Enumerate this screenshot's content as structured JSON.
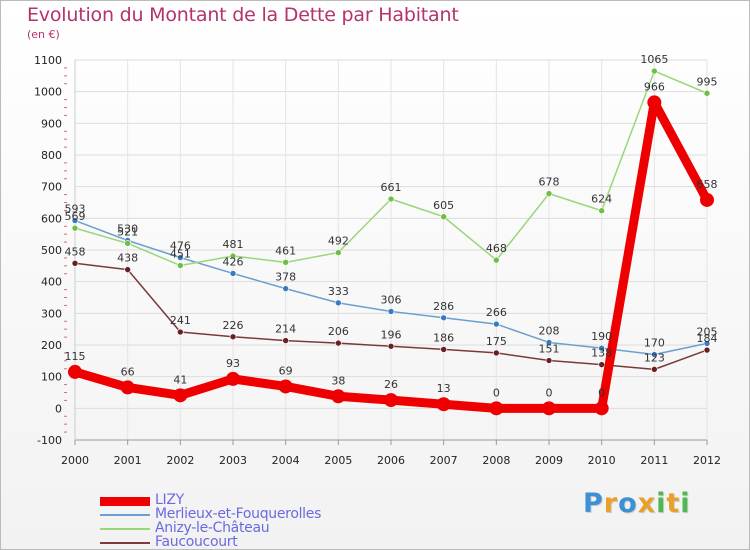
{
  "title": "Evolution du Montant de la Dette par Habitant",
  "subtitle": "(en €)",
  "brand": {
    "letters": [
      "P",
      "r",
      "o",
      "x",
      "i",
      "t",
      "i"
    ],
    "colors": [
      "#3d8fd6",
      "#e8a02a",
      "#3d8fd6",
      "#e8a02a",
      "#4fb84f",
      "#e8a02a",
      "#4fb84f"
    ]
  },
  "chart_data": {
    "type": "line",
    "title": "Evolution du Montant de la Dette par Habitant",
    "subtitle": "(en €)",
    "xlabel": "",
    "ylabel": "",
    "x": [
      "2000",
      "2001",
      "2002",
      "2003",
      "2004",
      "2005",
      "2006",
      "2007",
      "2008",
      "2009",
      "2010",
      "2011",
      "2012"
    ],
    "ylim": [
      -100,
      1100
    ],
    "yticks": [
      "-100",
      "0",
      "100",
      "200",
      "300",
      "400",
      "500",
      "600",
      "700",
      "800",
      "900",
      "1000",
      "1100"
    ],
    "grid": true,
    "legend_position": "bottom-left",
    "series": [
      {
        "name": "LIZY",
        "color": "#ee0000",
        "values": [
          115,
          66,
          41,
          93,
          69,
          38,
          26,
          13,
          0,
          0,
          0,
          966,
          658
        ],
        "labels": [
          "115",
          "66",
          "41",
          "93",
          "69",
          "38",
          "26",
          "13",
          "0",
          "0",
          "0",
          "966",
          "658"
        ]
      },
      {
        "name": "Merlieux-et-Fouquerolles",
        "color": "#6a9fd0",
        "marker": "#3a7bc0",
        "values": [
          593,
          530,
          476,
          426,
          378,
          333,
          306,
          286,
          266,
          208,
          190,
          170,
          205
        ],
        "labels": [
          "593",
          "530",
          "476",
          "426",
          "378",
          "333",
          "306",
          "286",
          "266",
          "208",
          "190",
          "170",
          "205"
        ]
      },
      {
        "name": "Anizy-le-Château",
        "color": "#9ad67a",
        "marker": "#6ac040",
        "values": [
          569,
          521,
          451,
          481,
          461,
          492,
          661,
          605,
          468,
          678,
          624,
          1065,
          995
        ],
        "labels": [
          "569",
          "521",
          "451",
          "481",
          "461",
          "492",
          "661",
          "605",
          "468",
          "678",
          "624",
          "1065",
          "995"
        ]
      },
      {
        "name": "Faucoucourt",
        "color": "#7a3a3a",
        "marker": "#6a1f1f",
        "values": [
          458,
          438,
          241,
          226,
          214,
          206,
          196,
          186,
          175,
          151,
          138,
          123,
          184
        ],
        "labels": [
          "458",
          "438",
          "241",
          "226",
          "214",
          "206",
          "196",
          "186",
          "175",
          "151",
          "138",
          "123",
          "184"
        ]
      }
    ]
  }
}
